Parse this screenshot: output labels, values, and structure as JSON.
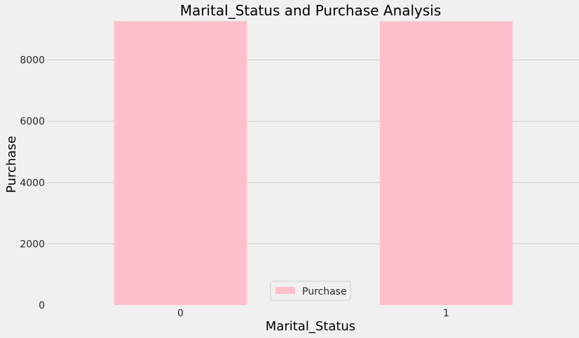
{
  "chart_data": {
    "type": "bar",
    "title": "Marital_Status and Purchase Analysis",
    "xlabel": "Marital_Status",
    "ylabel": "Purchase",
    "categories": [
      "0",
      "1"
    ],
    "series": [
      {
        "name": "Purchase",
        "values": [
          9266,
          9261
        ]
      }
    ],
    "ylim": [
      0,
      9270
    ],
    "yticks": [
      0,
      2000,
      4000,
      6000,
      8000
    ],
    "grid": true,
    "legend_position": "bottom-center",
    "colors": {
      "bar": "#ffc0cb",
      "background": "#f0f0f0",
      "grid": "#cbcbcb"
    }
  }
}
